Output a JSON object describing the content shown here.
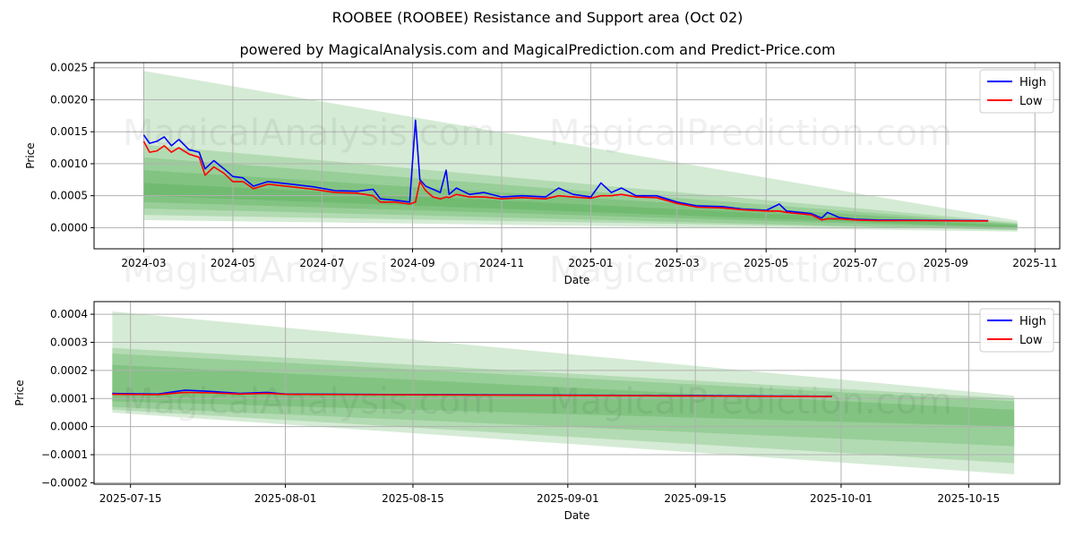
{
  "title": "ROOBEE (ROOBEE) Resistance and Support area (Oct 02)",
  "subtitle": "powered by MagicalAnalysis.com and MagicalPrediction.com and Predict-Price.com",
  "watermarks": [
    "MagicalAnalysis.com",
    "MagicalPrediction.com"
  ],
  "colors": {
    "high": "#0000ff",
    "low": "#ff0000",
    "band": "#2e9a2e"
  },
  "chart_data": [
    {
      "type": "line",
      "xlabel": "Date",
      "ylabel": "Price",
      "xlim": [
        "2024-01-27",
        "2025-11-18"
      ],
      "ylim": [
        -0.00033,
        0.00258
      ],
      "yticks": [
        0.0,
        0.0005,
        0.001,
        0.0015,
        0.002,
        0.0025
      ],
      "ytick_labels": [
        "0.0000",
        "0.0005",
        "0.0010",
        "0.0015",
        "0.0020",
        "0.0025"
      ],
      "xticks": [
        "2024-03-01",
        "2024-05-01",
        "2024-07-01",
        "2024-09-01",
        "2024-11-01",
        "2025-01-01",
        "2025-03-01",
        "2025-05-01",
        "2025-07-01",
        "2025-09-01",
        "2025-11-01"
      ],
      "xtick_labels": [
        "2024-03",
        "2024-05",
        "2024-07",
        "2024-09",
        "2024-11",
        "2025-01",
        "2025-03",
        "2025-05",
        "2025-07",
        "2025-09",
        "2025-11"
      ],
      "grid": true,
      "legend": {
        "placement": "top-right",
        "entries": [
          "High",
          "Low"
        ]
      },
      "x": [
        "2024-03-01",
        "2024-03-05",
        "2024-03-10",
        "2024-03-15",
        "2024-03-20",
        "2024-03-25",
        "2024-04-01",
        "2024-04-08",
        "2024-04-12",
        "2024-04-18",
        "2024-04-25",
        "2024-05-01",
        "2024-05-08",
        "2024-05-15",
        "2024-05-25",
        "2024-06-10",
        "2024-06-25",
        "2024-07-10",
        "2024-07-25",
        "2024-08-05",
        "2024-08-10",
        "2024-08-20",
        "2024-08-30",
        "2024-09-03",
        "2024-09-06",
        "2024-09-10",
        "2024-09-15",
        "2024-09-20",
        "2024-09-24",
        "2024-09-26",
        "2024-10-01",
        "2024-10-10",
        "2024-10-20",
        "2024-11-01",
        "2024-11-15",
        "2024-12-01",
        "2024-12-10",
        "2024-12-20",
        "2025-01-01",
        "2025-01-08",
        "2025-01-15",
        "2025-01-22",
        "2025-02-01",
        "2025-02-15",
        "2025-03-01",
        "2025-03-15",
        "2025-04-01",
        "2025-04-15",
        "2025-05-01",
        "2025-05-10",
        "2025-05-15",
        "2025-06-01",
        "2025-06-08",
        "2025-06-12",
        "2025-06-20",
        "2025-07-01",
        "2025-07-15",
        "2025-08-15",
        "2025-09-30"
      ],
      "series": [
        {
          "name": "High",
          "values": [
            0.00145,
            0.00132,
            0.00135,
            0.00142,
            0.00128,
            0.00138,
            0.00122,
            0.00118,
            0.00092,
            0.00105,
            0.00092,
            0.0008,
            0.00078,
            0.00065,
            0.00072,
            0.00068,
            0.00064,
            0.00058,
            0.00057,
            0.0006,
            0.00045,
            0.00043,
            0.0004,
            0.00168,
            0.00075,
            0.00065,
            0.0006,
            0.00055,
            0.0009,
            0.00052,
            0.00062,
            0.00052,
            0.00055,
            0.00048,
            0.0005,
            0.00048,
            0.00062,
            0.00052,
            0.00048,
            0.0007,
            0.00055,
            0.00062,
            0.0005,
            0.0005,
            0.0004,
            0.00034,
            0.00033,
            0.00029,
            0.00027,
            0.00037,
            0.00026,
            0.00022,
            0.00015,
            0.00024,
            0.00016,
            0.00013,
            0.00012,
            0.000115,
            0.00011
          ]
        },
        {
          "name": "Low",
          "values": [
            0.00135,
            0.00118,
            0.0012,
            0.00128,
            0.00118,
            0.00125,
            0.00115,
            0.0011,
            0.00082,
            0.00095,
            0.00085,
            0.00072,
            0.00072,
            0.00061,
            0.00068,
            0.00064,
            0.0006,
            0.00055,
            0.00054,
            0.0005,
            0.0004,
            0.0004,
            0.00037,
            0.0004,
            0.00072,
            0.00058,
            0.00048,
            0.00045,
            0.00048,
            0.00047,
            0.00052,
            0.00048,
            0.00048,
            0.00045,
            0.00047,
            0.00045,
            0.0005,
            0.00048,
            0.00046,
            0.0005,
            0.0005,
            0.00052,
            0.00048,
            0.00047,
            0.00038,
            0.00032,
            0.00031,
            0.00028,
            0.00026,
            0.00026,
            0.00024,
            0.0002,
            0.00012,
            0.00014,
            0.00014,
            0.00012,
            0.00011,
            0.00011,
            0.000105
          ]
        }
      ],
      "bands": [
        {
          "start": "2024-03-01",
          "end": "2025-10-20",
          "start_range": [
            0.00012,
            0.00245
          ],
          "end_range": [
            -6e-05,
            0.00011
          ]
        },
        {
          "start": "2024-03-01",
          "end": "2025-10-20",
          "start_range": [
            0.0002,
            0.0013
          ],
          "end_range": [
            -3e-05,
            8e-05
          ]
        },
        {
          "start": "2024-03-01",
          "end": "2025-10-20",
          "start_range": [
            0.0004,
            0.0011
          ],
          "end_range": [
            -1e-05,
            6e-05
          ]
        },
        {
          "start": "2024-03-01",
          "end": "2025-10-20",
          "start_range": [
            0.0005,
            0.0009
          ],
          "end_range": [
            0.0,
            5e-05
          ]
        },
        {
          "start": "2024-03-01",
          "end": "2025-10-20",
          "start_range": [
            0.0003,
            0.0007
          ],
          "end_range": [
            -4e-05,
            3e-05
          ]
        }
      ]
    },
    {
      "type": "line",
      "xlabel": "Date",
      "ylabel": "Price",
      "xlim": [
        "2025-07-11",
        "2025-10-25"
      ],
      "ylim": [
        -0.000205,
        0.000445
      ],
      "yticks": [
        -0.0002,
        -0.0001,
        0.0,
        0.0001,
        0.0002,
        0.0003,
        0.0004
      ],
      "ytick_labels": [
        "−0.0002",
        "−0.0001",
        "0.0000",
        "0.0001",
        "0.0002",
        "0.0003",
        "0.0004"
      ],
      "xticks": [
        "2025-07-15",
        "2025-08-01",
        "2025-08-15",
        "2025-09-01",
        "2025-09-15",
        "2025-10-01",
        "2025-10-15"
      ],
      "xtick_labels": [
        "2025-07-15",
        "2025-08-01",
        "2025-08-15",
        "2025-09-01",
        "2025-09-15",
        "2025-10-01",
        "2025-10-15"
      ],
      "grid": true,
      "legend": {
        "placement": "top-right",
        "entries": [
          "High",
          "Low"
        ]
      },
      "x": [
        "2025-07-13",
        "2025-07-18",
        "2025-07-21",
        "2025-07-24",
        "2025-07-27",
        "2025-07-30",
        "2025-08-01",
        "2025-08-15",
        "2025-09-01",
        "2025-09-15",
        "2025-09-30"
      ],
      "series": [
        {
          "name": "High",
          "values": [
            0.000118,
            0.000116,
            0.00013,
            0.000125,
            0.000118,
            0.000122,
            0.000116,
            0.000114,
            0.000112,
            0.00011,
            0.000108
          ]
        },
        {
          "name": "Low",
          "values": [
            0.000115,
            0.000114,
            0.000122,
            0.00012,
            0.000116,
            0.000118,
            0.000115,
            0.000113,
            0.000111,
            0.000109,
            0.000107
          ]
        }
      ],
      "bands": [
        {
          "start": "2025-07-13",
          "end": "2025-10-20",
          "start_range": [
            5e-05,
            0.00041
          ],
          "end_range": [
            -0.00017,
            0.00011
          ]
        },
        {
          "start": "2025-07-13",
          "end": "2025-10-20",
          "start_range": [
            6e-05,
            0.00028
          ],
          "end_range": [
            -0.00013,
            0.0001
          ]
        },
        {
          "start": "2025-07-13",
          "end": "2025-10-20",
          "start_range": [
            7e-05,
            0.00026
          ],
          "end_range": [
            -7e-05,
            9e-05
          ]
        },
        {
          "start": "2025-07-13",
          "end": "2025-10-20",
          "start_range": [
            9e-05,
            0.00022
          ],
          "end_range": [
            0.0,
            6e-05
          ]
        }
      ]
    }
  ]
}
